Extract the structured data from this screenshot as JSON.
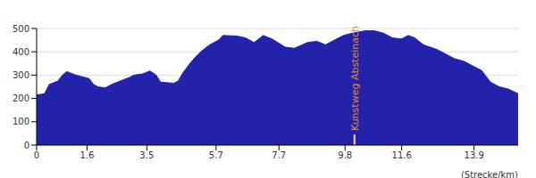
{
  "chart_data": {
    "type": "area",
    "x_label": "(Strecke/km)",
    "color": "#2222aa",
    "grid": true,
    "x": [
      0,
      0.25,
      0.4,
      0.68,
      0.82,
      0.96,
      1.25,
      1.53,
      1.67,
      1.81,
      1.95,
      2.18,
      2.38,
      2.66,
      2.95,
      3.09,
      3.37,
      3.6,
      3.8,
      3.94,
      4.36,
      4.5,
      4.65,
      4.93,
      5.21,
      5.5,
      5.78,
      5.92,
      6.35,
      6.63,
      6.91,
      7.2,
      7.48,
      7.9,
      8.19,
      8.61,
      8.9,
      9.18,
      9.46,
      9.75,
      10.03,
      10.45,
      10.74,
      11.02,
      11.3,
      11.59,
      11.81,
      12.01,
      12.29,
      12.72,
      13.0,
      13.28,
      13.57,
      13.85,
      14.14,
      14.42,
      14.7,
      14.99,
      15.3
    ],
    "values": [
      215,
      220,
      260,
      275,
      300,
      315,
      300,
      290,
      285,
      260,
      250,
      245,
      260,
      275,
      290,
      300,
      305,
      318,
      300,
      270,
      265,
      275,
      310,
      360,
      400,
      430,
      450,
      470,
      468,
      460,
      440,
      470,
      455,
      420,
      415,
      440,
      445,
      430,
      450,
      470,
      480,
      490,
      490,
      480,
      460,
      455,
      470,
      460,
      430,
      410,
      390,
      370,
      360,
      340,
      320,
      270,
      250,
      240,
      220
    ],
    "xlim": [
      0,
      15.3
    ],
    "xticks": [
      0,
      1.6,
      3.5,
      5.7,
      7.7,
      9.8,
      11.6,
      13.9
    ],
    "ylim": [
      0,
      500
    ],
    "yticks": [
      0,
      100,
      200,
      300,
      400,
      500
    ],
    "annotations": [
      {
        "x": 10.1,
        "text": "Kunstweg Absteinach"
      }
    ]
  }
}
